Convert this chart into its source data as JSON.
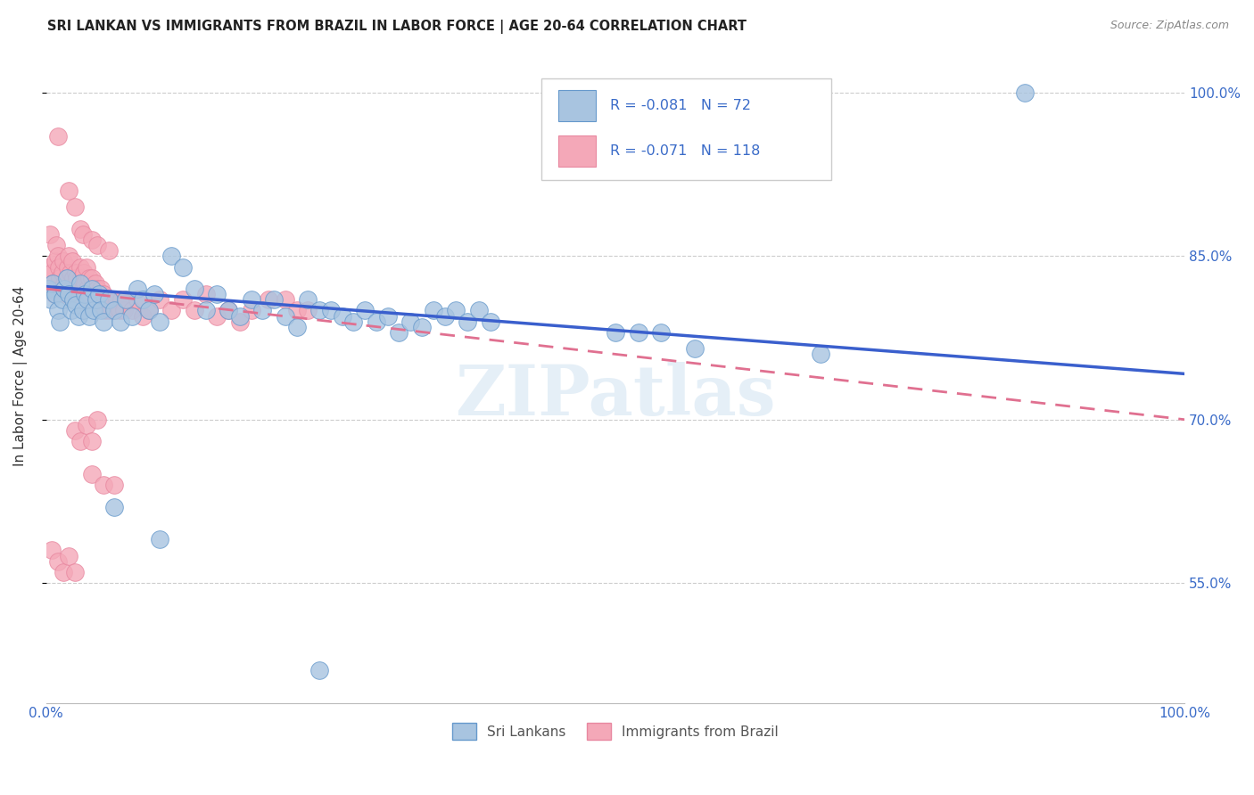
{
  "title": "SRI LANKAN VS IMMIGRANTS FROM BRAZIL IN LABOR FORCE | AGE 20-64 CORRELATION CHART",
  "source": "Source: ZipAtlas.com",
  "ylabel": "In Labor Force | Age 20-64",
  "xlim": [
    0.0,
    1.0
  ],
  "ylim": [
    0.44,
    1.04
  ],
  "ytick_vals": [
    0.55,
    0.7,
    0.85,
    1.0
  ],
  "ytick_labels": [
    "55.0%",
    "70.0%",
    "85.0%",
    "100.0%"
  ],
  "xtick_vals": [
    0.0,
    0.2,
    0.4,
    0.6,
    0.8,
    1.0
  ],
  "xtick_labels": [
    "0.0%",
    "",
    "",
    "",
    "",
    "100.0%"
  ],
  "legend_r_blue": "-0.081",
  "legend_n_blue": "72",
  "legend_r_pink": "-0.071",
  "legend_n_pink": "118",
  "blue_fill": "#a8c4e0",
  "pink_fill": "#f4a8b8",
  "blue_edge": "#6699cc",
  "pink_edge": "#e888a0",
  "line_blue": "#3a5fcd",
  "line_pink": "#e07090",
  "watermark": "ZIPatlas",
  "blue_line_start_y": 0.822,
  "blue_line_end_y": 0.742,
  "pink_line_start_y": 0.82,
  "pink_line_end_y": 0.7,
  "blue_scatter": [
    [
      0.002,
      0.82
    ],
    [
      0.004,
      0.81
    ],
    [
      0.006,
      0.825
    ],
    [
      0.008,
      0.815
    ],
    [
      0.01,
      0.8
    ],
    [
      0.012,
      0.79
    ],
    [
      0.014,
      0.81
    ],
    [
      0.016,
      0.82
    ],
    [
      0.018,
      0.83
    ],
    [
      0.02,
      0.815
    ],
    [
      0.022,
      0.8
    ],
    [
      0.024,
      0.81
    ],
    [
      0.026,
      0.805
    ],
    [
      0.028,
      0.795
    ],
    [
      0.03,
      0.825
    ],
    [
      0.032,
      0.8
    ],
    [
      0.034,
      0.815
    ],
    [
      0.036,
      0.81
    ],
    [
      0.038,
      0.795
    ],
    [
      0.04,
      0.82
    ],
    [
      0.042,
      0.8
    ],
    [
      0.044,
      0.81
    ],
    [
      0.046,
      0.815
    ],
    [
      0.048,
      0.8
    ],
    [
      0.05,
      0.79
    ],
    [
      0.055,
      0.81
    ],
    [
      0.06,
      0.8
    ],
    [
      0.065,
      0.79
    ],
    [
      0.07,
      0.81
    ],
    [
      0.075,
      0.795
    ],
    [
      0.08,
      0.82
    ],
    [
      0.085,
      0.81
    ],
    [
      0.09,
      0.8
    ],
    [
      0.095,
      0.815
    ],
    [
      0.1,
      0.79
    ],
    [
      0.11,
      0.85
    ],
    [
      0.12,
      0.84
    ],
    [
      0.13,
      0.82
    ],
    [
      0.14,
      0.8
    ],
    [
      0.15,
      0.815
    ],
    [
      0.16,
      0.8
    ],
    [
      0.17,
      0.795
    ],
    [
      0.18,
      0.81
    ],
    [
      0.19,
      0.8
    ],
    [
      0.2,
      0.81
    ],
    [
      0.21,
      0.795
    ],
    [
      0.22,
      0.785
    ],
    [
      0.23,
      0.81
    ],
    [
      0.24,
      0.8
    ],
    [
      0.25,
      0.8
    ],
    [
      0.26,
      0.795
    ],
    [
      0.27,
      0.79
    ],
    [
      0.28,
      0.8
    ],
    [
      0.29,
      0.79
    ],
    [
      0.3,
      0.795
    ],
    [
      0.31,
      0.78
    ],
    [
      0.32,
      0.79
    ],
    [
      0.33,
      0.785
    ],
    [
      0.34,
      0.8
    ],
    [
      0.35,
      0.795
    ],
    [
      0.36,
      0.8
    ],
    [
      0.37,
      0.79
    ],
    [
      0.38,
      0.8
    ],
    [
      0.39,
      0.79
    ],
    [
      0.5,
      0.78
    ],
    [
      0.52,
      0.78
    ],
    [
      0.54,
      0.78
    ],
    [
      0.57,
      0.765
    ],
    [
      0.68,
      0.76
    ],
    [
      0.86,
      1.0
    ],
    [
      0.06,
      0.62
    ],
    [
      0.1,
      0.59
    ],
    [
      0.24,
      0.47
    ]
  ],
  "pink_scatter": [
    [
      0.002,
      0.84
    ],
    [
      0.003,
      0.87
    ],
    [
      0.004,
      0.82
    ],
    [
      0.005,
      0.835
    ],
    [
      0.006,
      0.825
    ],
    [
      0.007,
      0.815
    ],
    [
      0.008,
      0.845
    ],
    [
      0.009,
      0.86
    ],
    [
      0.01,
      0.85
    ],
    [
      0.011,
      0.84
    ],
    [
      0.012,
      0.83
    ],
    [
      0.013,
      0.82
    ],
    [
      0.014,
      0.835
    ],
    [
      0.015,
      0.845
    ],
    [
      0.016,
      0.825
    ],
    [
      0.017,
      0.815
    ],
    [
      0.018,
      0.83
    ],
    [
      0.019,
      0.84
    ],
    [
      0.02,
      0.85
    ],
    [
      0.021,
      0.835
    ],
    [
      0.022,
      0.82
    ],
    [
      0.023,
      0.845
    ],
    [
      0.024,
      0.83
    ],
    [
      0.025,
      0.82
    ],
    [
      0.026,
      0.835
    ],
    [
      0.027,
      0.83
    ],
    [
      0.028,
      0.815
    ],
    [
      0.029,
      0.825
    ],
    [
      0.03,
      0.84
    ],
    [
      0.031,
      0.83
    ],
    [
      0.032,
      0.82
    ],
    [
      0.033,
      0.835
    ],
    [
      0.034,
      0.825
    ],
    [
      0.035,
      0.84
    ],
    [
      0.036,
      0.82
    ],
    [
      0.037,
      0.81
    ],
    [
      0.038,
      0.83
    ],
    [
      0.039,
      0.82
    ],
    [
      0.04,
      0.83
    ],
    [
      0.041,
      0.82
    ],
    [
      0.042,
      0.815
    ],
    [
      0.043,
      0.825
    ],
    [
      0.044,
      0.81
    ],
    [
      0.045,
      0.82
    ],
    [
      0.046,
      0.81
    ],
    [
      0.047,
      0.815
    ],
    [
      0.048,
      0.82
    ],
    [
      0.049,
      0.81
    ],
    [
      0.05,
      0.815
    ],
    [
      0.052,
      0.8
    ],
    [
      0.054,
      0.81
    ],
    [
      0.056,
      0.8
    ],
    [
      0.058,
      0.81
    ],
    [
      0.06,
      0.8
    ],
    [
      0.062,
      0.81
    ],
    [
      0.064,
      0.8
    ],
    [
      0.066,
      0.81
    ],
    [
      0.068,
      0.8
    ],
    [
      0.07,
      0.81
    ],
    [
      0.075,
      0.8
    ],
    [
      0.08,
      0.81
    ],
    [
      0.085,
      0.795
    ],
    [
      0.09,
      0.8
    ],
    [
      0.01,
      0.96
    ],
    [
      0.02,
      0.91
    ],
    [
      0.025,
      0.895
    ],
    [
      0.03,
      0.875
    ],
    [
      0.032,
      0.87
    ],
    [
      0.04,
      0.865
    ],
    [
      0.045,
      0.86
    ],
    [
      0.055,
      0.855
    ],
    [
      0.1,
      0.81
    ],
    [
      0.11,
      0.8
    ],
    [
      0.12,
      0.81
    ],
    [
      0.13,
      0.8
    ],
    [
      0.14,
      0.815
    ],
    [
      0.15,
      0.795
    ],
    [
      0.16,
      0.8
    ],
    [
      0.17,
      0.79
    ],
    [
      0.18,
      0.8
    ],
    [
      0.195,
      0.81
    ],
    [
      0.21,
      0.81
    ],
    [
      0.22,
      0.8
    ],
    [
      0.23,
      0.8
    ],
    [
      0.025,
      0.69
    ],
    [
      0.03,
      0.68
    ],
    [
      0.035,
      0.695
    ],
    [
      0.04,
      0.68
    ],
    [
      0.045,
      0.7
    ],
    [
      0.005,
      0.58
    ],
    [
      0.01,
      0.57
    ],
    [
      0.015,
      0.56
    ],
    [
      0.02,
      0.575
    ],
    [
      0.025,
      0.56
    ],
    [
      0.04,
      0.65
    ],
    [
      0.05,
      0.64
    ],
    [
      0.06,
      0.64
    ]
  ]
}
